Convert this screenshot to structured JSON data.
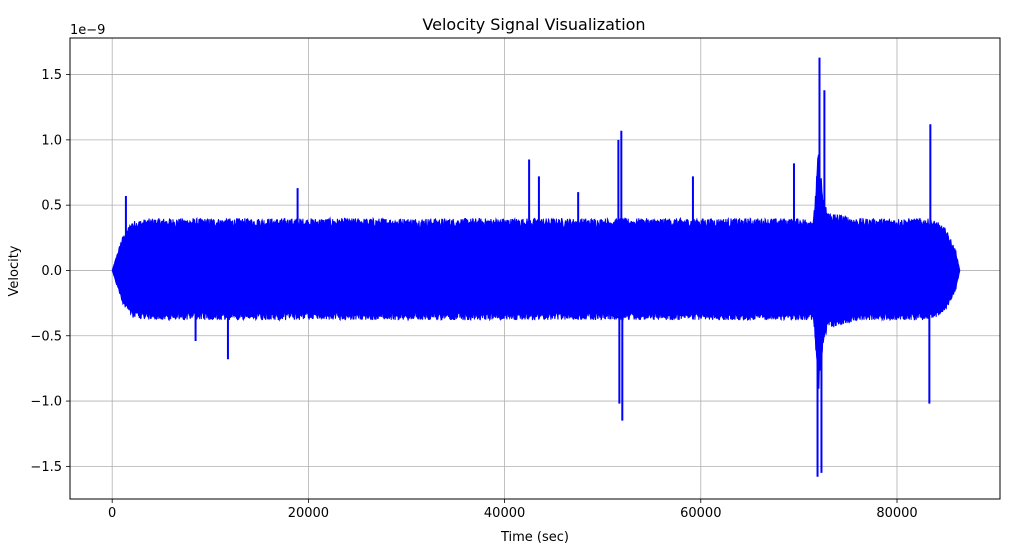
{
  "chart_data": {
    "type": "line",
    "title": "Velocity Signal Visualization",
    "xlabel": "Time (sec)",
    "ylabel": "Velocity",
    "y_scale_label": "1e−9",
    "xlim": [
      -4300,
      90500
    ],
    "ylim": [
      -1.75,
      1.78
    ],
    "y_unit_multiplier": 1e-09,
    "grid": true,
    "line_color": "#0000ff",
    "x_ticks": [
      0,
      20000,
      40000,
      60000,
      80000
    ],
    "x_tick_labels": [
      "0",
      "20000",
      "40000",
      "60000",
      "80000"
    ],
    "y_ticks": [
      -1.5,
      -1.0,
      -0.5,
      0.0,
      0.5,
      1.0,
      1.5
    ],
    "y_tick_labels": [
      "−1.5",
      "−1.0",
      "−0.5",
      "0.0",
      "0.5",
      "1.0",
      "1.5"
    ],
    "series": [
      {
        "x": [
          0,
          1000,
          2000,
          4000,
          8000,
          12000,
          16000,
          20000,
          24000,
          28000,
          32000,
          36000,
          40000,
          44000,
          48000,
          51000,
          52000,
          56000,
          60000,
          64000,
          68000,
          71500,
          72000,
          72500,
          73000,
          76000,
          80000,
          83000,
          84000,
          85000,
          86000,
          86400
        ],
        "y_max": [
          0.0,
          0.25,
          0.38,
          0.4,
          0.4,
          0.4,
          0.4,
          0.4,
          0.4,
          0.4,
          0.4,
          0.4,
          0.4,
          0.4,
          0.4,
          0.4,
          0.4,
          0.4,
          0.4,
          0.4,
          0.4,
          0.4,
          0.95,
          0.55,
          0.45,
          0.4,
          0.4,
          0.4,
          0.38,
          0.32,
          0.15,
          0.0
        ],
        "y_min": [
          0.0,
          -0.25,
          -0.36,
          -0.38,
          -0.38,
          -0.38,
          -0.38,
          -0.38,
          -0.38,
          -0.38,
          -0.38,
          -0.38,
          -0.38,
          -0.38,
          -0.38,
          -0.38,
          -0.38,
          -0.38,
          -0.38,
          -0.38,
          -0.38,
          -0.38,
          -0.95,
          -0.55,
          -0.45,
          -0.38,
          -0.38,
          -0.38,
          -0.36,
          -0.3,
          -0.15,
          0.0
        ],
        "spikes": [
          {
            "x": 1400,
            "y": 0.57
          },
          {
            "x": 8500,
            "y": -0.54
          },
          {
            "x": 11800,
            "y": -0.68
          },
          {
            "x": 18900,
            "y": 0.63
          },
          {
            "x": 42500,
            "y": 0.85
          },
          {
            "x": 43500,
            "y": 0.72
          },
          {
            "x": 47500,
            "y": 0.6
          },
          {
            "x": 51600,
            "y": 1.0
          },
          {
            "x": 51700,
            "y": -1.02
          },
          {
            "x": 51900,
            "y": 1.07
          },
          {
            "x": 52000,
            "y": -1.15
          },
          {
            "x": 59200,
            "y": 0.72
          },
          {
            "x": 69500,
            "y": 0.82
          },
          {
            "x": 71900,
            "y": -1.58
          },
          {
            "x": 72100,
            "y": 1.63
          },
          {
            "x": 72300,
            "y": -1.55
          },
          {
            "x": 72600,
            "y": 1.38
          },
          {
            "x": 83300,
            "y": -1.02
          },
          {
            "x": 83400,
            "y": 1.12
          }
        ]
      }
    ]
  }
}
